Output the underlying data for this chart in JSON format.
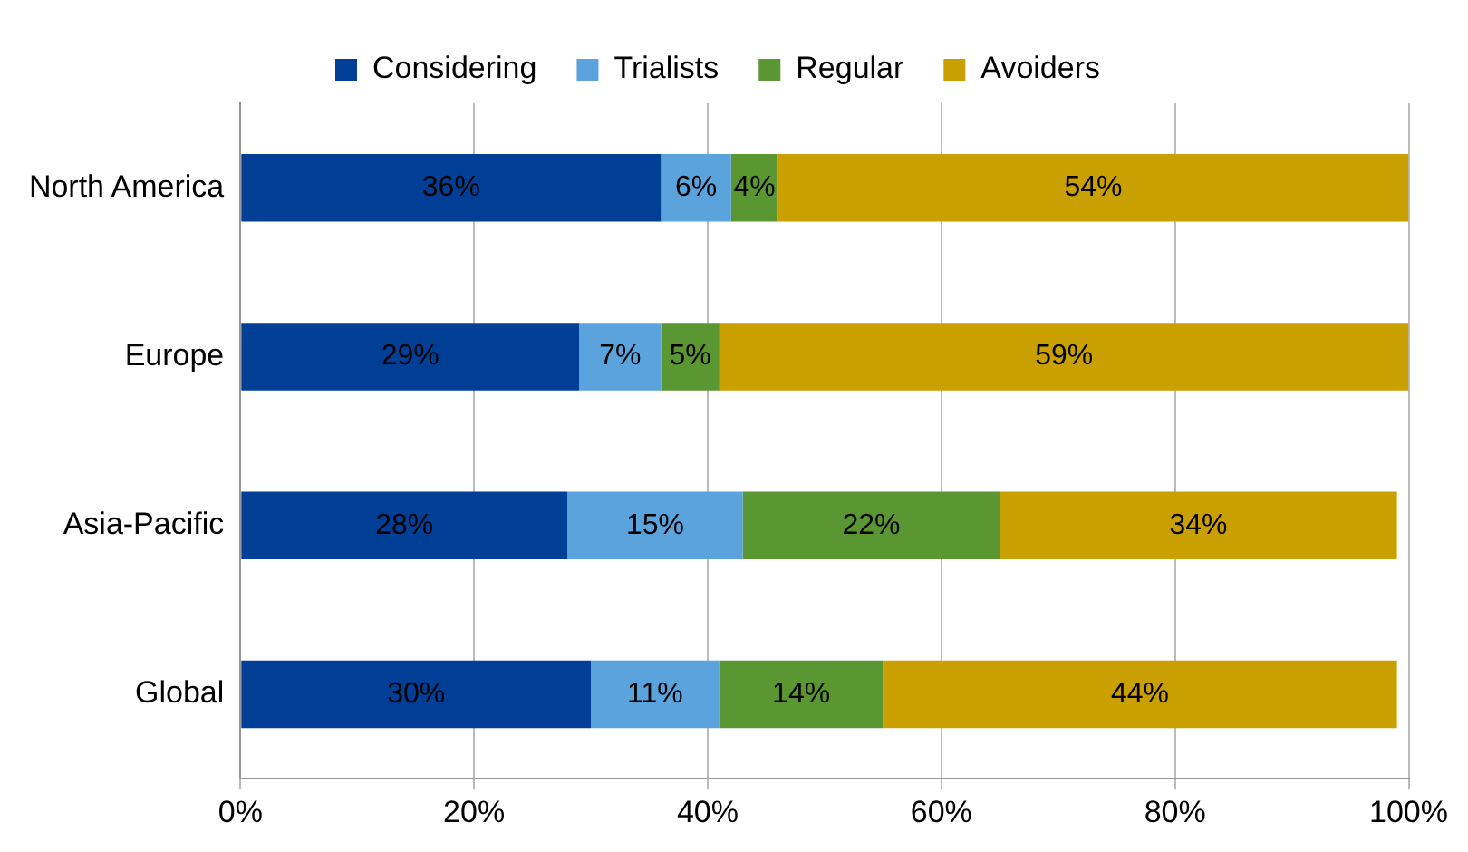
{
  "chart_data": {
    "type": "bar",
    "orientation": "horizontal",
    "stacked": true,
    "categories": [
      "North America",
      "Europe",
      "Asia-Pacific",
      "Global"
    ],
    "series": [
      {
        "name": "Considering",
        "color": "#003f95",
        "values": [
          36,
          29,
          28,
          30
        ],
        "value_labels": [
          "36%",
          "29%",
          "28%",
          "30%"
        ]
      },
      {
        "name": "Trialists",
        "color": "#5ba3dc",
        "values": [
          6,
          7,
          15,
          11
        ],
        "value_labels": [
          "6%",
          "7%",
          "15%",
          "11%"
        ]
      },
      {
        "name": "Regular",
        "color": "#5a9632",
        "values": [
          4,
          5,
          22,
          14
        ],
        "value_labels": [
          "4%",
          "5%",
          "22%",
          "14%"
        ]
      },
      {
        "name": "Avoiders",
        "color": "#c9a000",
        "values": [
          54,
          59,
          34,
          44
        ],
        "value_labels": [
          "54%",
          "59%",
          "34%",
          "44%"
        ]
      }
    ],
    "xlim": [
      0,
      100
    ],
    "xticks": [
      {
        "value": 0,
        "label": "0%"
      },
      {
        "value": 20,
        "label": "20%"
      },
      {
        "value": 40,
        "label": "40%"
      },
      {
        "value": 60,
        "label": "60%"
      },
      {
        "value": 80,
        "label": "80%"
      },
      {
        "value": 100,
        "label": "100%"
      }
    ],
    "grid": "x",
    "legend": "top"
  }
}
